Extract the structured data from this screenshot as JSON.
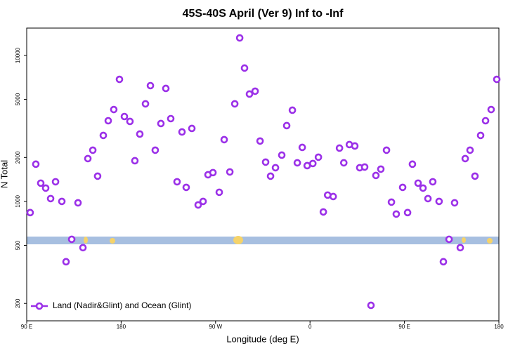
{
  "chart_data": {
    "type": "scatter",
    "title": "45S-40S April (Ver 9)   Inf to -Inf",
    "x_label": "Longitude (deg E)",
    "y_label": "N Total",
    "log_y": true,
    "legend": "lower left",
    "xlim": [
      90,
      540
    ],
    "xticks": [
      {
        "value": 90,
        "label": "90 E"
      },
      180,
      {
        "value": 270,
        "label": "90 W"
      },
      {
        "value": 360,
        "label": "0"
      },
      {
        "value": 450,
        "label": "90 E"
      },
      {
        "value": 540,
        "label": "180"
      }
    ],
    "ylim": [
      152,
      15400
    ],
    "yticks": [
      200,
      500,
      1000,
      2000,
      5000,
      10000
    ],
    "series": [
      {
        "name": "Land (Nadir&Glint) and Ocean (Glint)",
        "color": "#9b30e8",
        "x": [
          93.3,
          98.7,
          103.4,
          108.1,
          112.8,
          117.5,
          123.5,
          127.5,
          132.9,
          138.9,
          143.6,
          148.3,
          153,
          157.6,
          163,
          167.7,
          173,
          178.4,
          183.1,
          188.4,
          193.1,
          197.8,
          203.2,
          207.9,
          212.5,
          217.9,
          222.6,
          227.3,
          233.3,
          238,
          242,
          247.4,
          253.4,
          258.1,
          262.8,
          267.5,
          273.5,
          278.2,
          283.6,
          288.3,
          293,
          297.6,
          302.3,
          307.7,
          312.4,
          317.7,
          322.4,
          327.1,
          333.1,
          337.8,
          343.2,
          347.9,
          352.6,
          357.3,
          362.7,
          368,
          372.7,
          376.8,
          382.1,
          388.1,
          392.2,
          397.5,
          402.7,
          407.4,
          412.1,
          418.1,
          422.8,
          427.5,
          432.9,
          437.6,
          442.2,
          448.3,
          453,
          457.6,
          463,
          467.7,
          472.4,
          477,
          483,
          487.1,
          492.5,
          497.8,
          503.2,
          507.9,
          512.5,
          517.2,
          522.6,
          527.3,
          532.6,
          538
        ],
        "values": [
          838,
          1800,
          1334,
          1234,
          1045,
          1363,
          1000,
          386,
          550,
          978,
          482,
          1965,
          2244,
          1490,
          2831,
          3570,
          4260,
          6860,
          3815,
          3532,
          1900,
          2894,
          4660,
          6210,
          2244,
          3416,
          5943,
          3690,
          1363,
          2992,
          1248,
          3162,
          946,
          1000,
          1523,
          1575,
          1155,
          2649,
          1592,
          4660,
          13180,
          8197,
          5440,
          5688,
          2592,
          1859,
          1490,
          1701,
          2076,
          3305,
          4217,
          1838,
          2345,
          1758,
          1818,
          2009,
          847,
          1105,
          1080,
          2319,
          1838,
          2450,
          2397,
          1701,
          1720,
          194,
          1506,
          1664,
          2244,
          989,
          819,
          1248,
          838,
          1800,
          1334,
          1234,
          1045,
          1363,
          1000,
          386,
          550,
          978,
          482,
          1965,
          2244,
          1490,
          2831,
          3570,
          4260,
          6860
        ]
      }
    ]
  }
}
